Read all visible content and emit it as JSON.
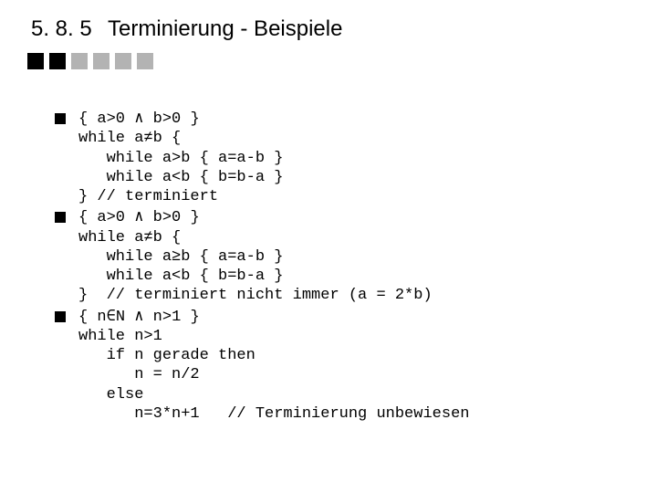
{
  "header": {
    "section_number": "5. 8. 5",
    "title": "Terminierung - Beispiele"
  },
  "decor": {
    "colors": [
      "#000000",
      "#000000",
      "#b3b3b3",
      "#b3b3b3",
      "#b3b3b3",
      "#b3b3b3"
    ],
    "box_size": 18,
    "gap": 6
  },
  "blocks": [
    {
      "lines": [
        "{ a>0 ∧ b>0 }",
        "while a≠b {",
        "   while a>b { a=a-b }",
        "   while a<b { b=b-a }",
        "} // terminiert"
      ]
    },
    {
      "lines": [
        "{ a>0 ∧ b>0 }",
        "while a≠b {",
        "   while a≥b { a=a-b }",
        "   while a<b { b=b-a }",
        "}  // terminiert nicht immer (a = 2*b)"
      ]
    },
    {
      "lines": [
        "{ n∈N ∧ n>1 }",
        "while n>1",
        "   if n gerade then",
        "      n = n/2",
        "   else",
        "      n=3*n+1   // Terminierung unbewiesen"
      ]
    }
  ],
  "style": {
    "background_color": "#ffffff",
    "heading_fontsize": 24,
    "code_fontsize": 17,
    "code_font": "Courier New",
    "bullet_color": "#000000",
    "bullet_size": 12
  }
}
